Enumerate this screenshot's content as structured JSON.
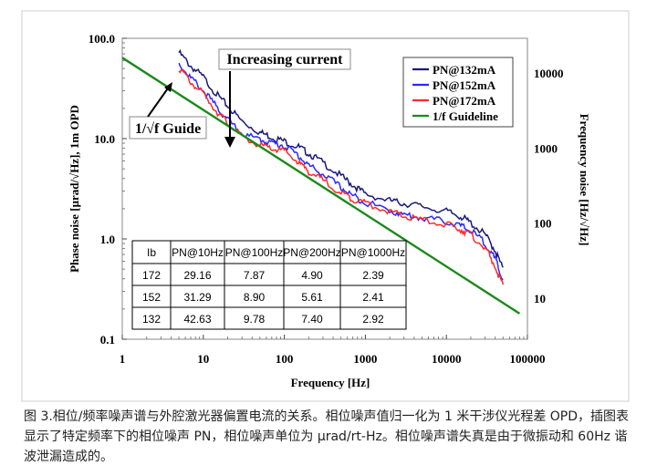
{
  "chart_data": {
    "type": "line",
    "x_scale": "log",
    "y_scale": "log",
    "xlabel": "Frequency [Hz]",
    "ylabel": "Phase noise [μrad/√Hz], 1m OPD",
    "y2label": "Frequency noise [Hz/√Hz]",
    "xlim": [
      1,
      100000
    ],
    "ylim": [
      0.1,
      100
    ],
    "x_ticks": [
      1,
      10,
      100,
      1000,
      10000,
      100000
    ],
    "x_tick_labels": [
      "1",
      "10",
      "100",
      "1000",
      "10000",
      "100000"
    ],
    "y_ticks": [
      0.1,
      1,
      10,
      100
    ],
    "y_tick_labels": [
      "0.1",
      "1.0",
      "10.0",
      "100.0"
    ],
    "y2_ticks": [
      10,
      100,
      1000,
      10000
    ],
    "y2_tick_labels": [
      "10",
      "100",
      "1000",
      "10000"
    ],
    "legend_position": "top-right",
    "series": [
      {
        "name": "PN@132mA",
        "color": "#1a1a7a",
        "x": [
          5,
          7,
          10,
          15,
          20,
          30,
          50,
          70,
          100,
          150,
          200,
          300,
          500,
          700,
          1000,
          2000,
          3000,
          5000,
          10000,
          15000,
          20000,
          30000,
          40000,
          50000
        ],
        "y": [
          75,
          55,
          42.6,
          28,
          22,
          15.5,
          12,
          10.8,
          9.78,
          8.6,
          7.4,
          6,
          4.4,
          3.6,
          2.92,
          2.5,
          2.35,
          2.2,
          1.95,
          1.75,
          1.5,
          1.15,
          0.8,
          0.52
        ]
      },
      {
        "name": "PN@152mA",
        "color": "#2a2aff",
        "x": [
          5,
          7,
          10,
          15,
          20,
          30,
          50,
          70,
          100,
          150,
          200,
          300,
          500,
          700,
          1000,
          2000,
          3000,
          5000,
          10000,
          15000,
          20000,
          30000,
          40000,
          50000
        ],
        "y": [
          58,
          42,
          31.3,
          21,
          16,
          11.6,
          10.1,
          9.4,
          8.9,
          7,
          5.61,
          4.6,
          3.4,
          2.8,
          2.41,
          2,
          1.8,
          1.7,
          1.55,
          1.4,
          1.25,
          0.95,
          0.65,
          0.4
        ]
      },
      {
        "name": "PN@172mA",
        "color": "#ff2a2a",
        "x": [
          5,
          7,
          10,
          15,
          20,
          30,
          50,
          70,
          100,
          150,
          200,
          300,
          500,
          700,
          1000,
          2000,
          3000,
          5000,
          10000,
          15000,
          20000,
          30000,
          40000,
          50000
        ],
        "y": [
          53,
          38,
          29.2,
          19,
          15,
          10.8,
          8.9,
          8.2,
          7.87,
          6,
          4.9,
          4,
          3,
          2.6,
          2.39,
          1.95,
          1.75,
          1.6,
          1.45,
          1.3,
          1.15,
          0.85,
          0.55,
          0.35
        ]
      },
      {
        "name": "1/f Guideline",
        "color": "#1a8a1a",
        "x": [
          1,
          80000
        ],
        "y": [
          64,
          0.18
        ]
      }
    ],
    "annotations": {
      "increasing_current": "Increasing current",
      "guide": "1/√f Guide"
    },
    "table": {
      "headers": [
        "Ib",
        "PN@10Hz",
        "PN@100Hz",
        "PN@200Hz",
        "PN@1000Hz"
      ],
      "rows": [
        [
          "172",
          "29.16",
          "7.87",
          "4.90",
          "2.39"
        ],
        [
          "152",
          "31.29",
          "8.90",
          "5.61",
          "2.41"
        ],
        [
          "132",
          "42.63",
          "9.78",
          "7.40",
          "2.92"
        ]
      ]
    }
  },
  "caption": "图 3.相位/频率噪声谱与外腔激光器偏置电流的关系。相位噪声值归一化为 1 米干涉仪光程差 OPD，插图表显示了特定频率下的相位噪声 PN，相位噪声单位为 µrad/rt-Hz。相位噪声谱失真是由于微振动和 60Hz 谐波泄漏造成的。"
}
